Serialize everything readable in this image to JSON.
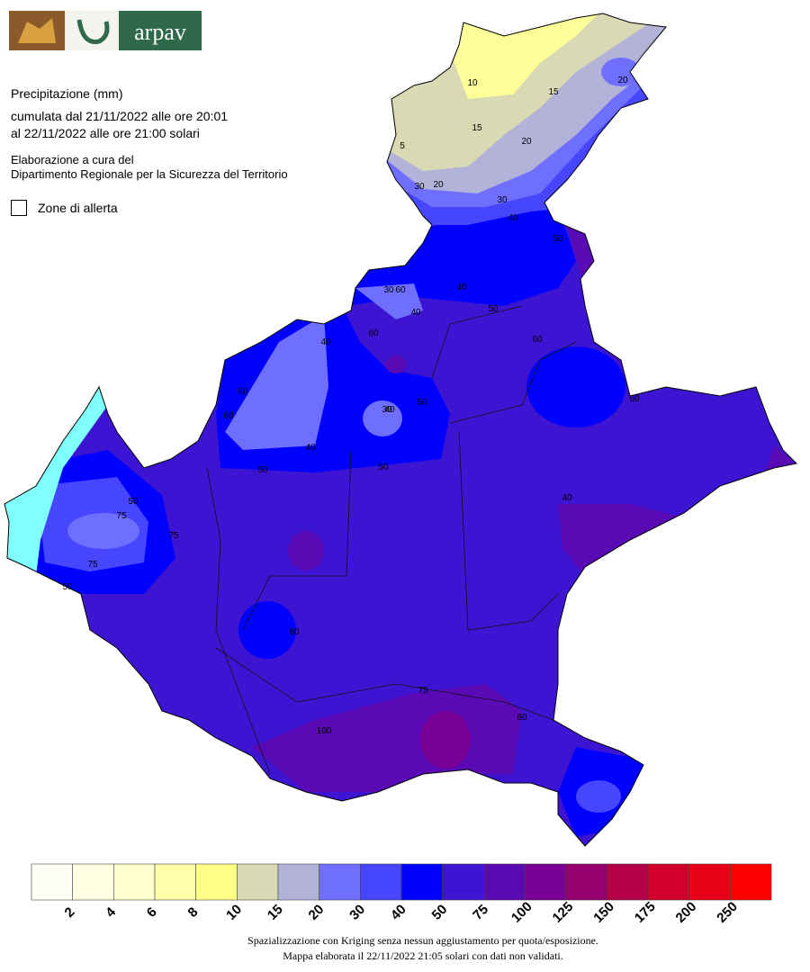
{
  "header": {
    "logo_text": "arpav"
  },
  "title": "Precipitazione (mm)",
  "period_line1": "cumulata dal 21/11/2022 alle ore 20:01",
  "period_line2": "al 22/11/2022 alle ore 21:00 solari",
  "credit_line1": "Elaborazione a cura del",
  "credit_line2": "Dipartimento Regionale per la Sicurezza del Territorio",
  "toggle_label": "Zone di allerta",
  "contour_labels": [
    "10",
    "15",
    "20",
    "5",
    "15",
    "20",
    "20",
    "30",
    "30",
    "40",
    "50",
    "60",
    "30",
    "40",
    "50",
    "60",
    "40",
    "40",
    "50",
    "60",
    "60",
    "60",
    "40",
    "50",
    "30",
    "40",
    "50",
    "60",
    "50",
    "75",
    "75",
    "75",
    "50",
    "60",
    "40",
    "100",
    "75",
    "60"
  ],
  "legend": {
    "breaks": [
      2,
      4,
      6,
      8,
      10,
      15,
      20,
      30,
      40,
      50,
      75,
      100,
      125,
      150,
      175,
      200,
      250
    ],
    "colors": [
      "#fffff4",
      "#ffffe2",
      "#ffffd0",
      "#ffffaa",
      "#ffff88",
      "#d9d9b3",
      "#b3b3d9",
      "#6e6eff",
      "#4646ff",
      "#0000ff",
      "#3c14d2",
      "#5a0ab4",
      "#780096",
      "#96006e",
      "#b40046",
      "#d2002a",
      "#e80016",
      "#ff0000"
    ]
  },
  "footer_line1": "Spazializzazione con Kriging senza nessun aggiustamento per quota/esposizione.",
  "footer_line2": "Mappa elaborata il 22/11/2022 21:05 solari con dati non validati."
}
